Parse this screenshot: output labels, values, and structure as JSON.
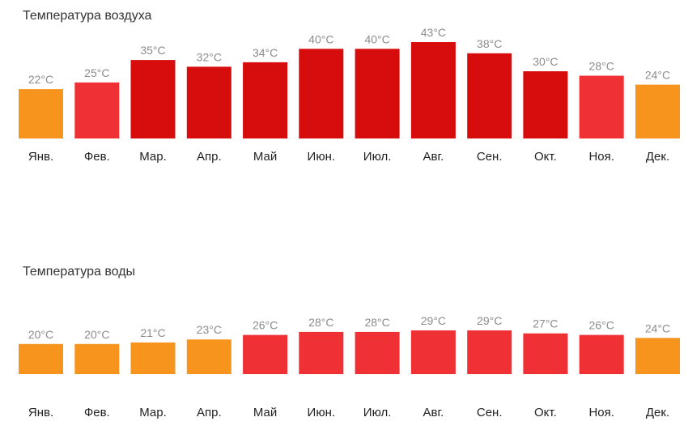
{
  "chart_data": [
    {
      "type": "bar",
      "title": "Температура воздуха",
      "categories": [
        "Янв.",
        "Фев.",
        "Мар.",
        "Апр.",
        "Май",
        "Июн.",
        "Июл.",
        "Авг.",
        "Сен.",
        "Окт.",
        "Ноя.",
        "Дек."
      ],
      "values": [
        22,
        25,
        35,
        32,
        34,
        40,
        40,
        43,
        38,
        30,
        28,
        24
      ],
      "value_labels": [
        "22°C",
        "25°C",
        "35°C",
        "32°C",
        "34°C",
        "40°C",
        "40°C",
        "43°C",
        "38°C",
        "30°C",
        "28°C",
        "24°C"
      ],
      "unit": "°C",
      "ylim": [
        0,
        43
      ],
      "grid": false,
      "legend": "none",
      "colors": [
        "#f7941d",
        "#ef3136",
        "#d70c0c",
        "#d70c0c",
        "#d70c0c",
        "#d70c0c",
        "#d70c0c",
        "#d70c0c",
        "#d70c0c",
        "#d70c0c",
        "#ef3136",
        "#f7941d"
      ]
    },
    {
      "type": "bar",
      "title": "Температура воды",
      "categories": [
        "Янв.",
        "Фев.",
        "Мар.",
        "Апр.",
        "Май",
        "Июн.",
        "Июл.",
        "Авг.",
        "Сен.",
        "Окт.",
        "Ноя.",
        "Дек."
      ],
      "values": [
        20,
        20,
        21,
        23,
        26,
        28,
        28,
        29,
        29,
        27,
        26,
        24
      ],
      "value_labels": [
        "20°C",
        "20°C",
        "21°C",
        "23°C",
        "26°C",
        "28°C",
        "28°C",
        "29°C",
        "29°C",
        "27°C",
        "26°C",
        "24°C"
      ],
      "unit": "°C",
      "ylim": [
        0,
        29
      ],
      "grid": false,
      "legend": "none",
      "colors": [
        "#f7941d",
        "#f7941d",
        "#f7941d",
        "#f7941d",
        "#ef3136",
        "#ef3136",
        "#ef3136",
        "#ef3136",
        "#ef3136",
        "#ef3136",
        "#ef3136",
        "#f7941d"
      ]
    }
  ]
}
